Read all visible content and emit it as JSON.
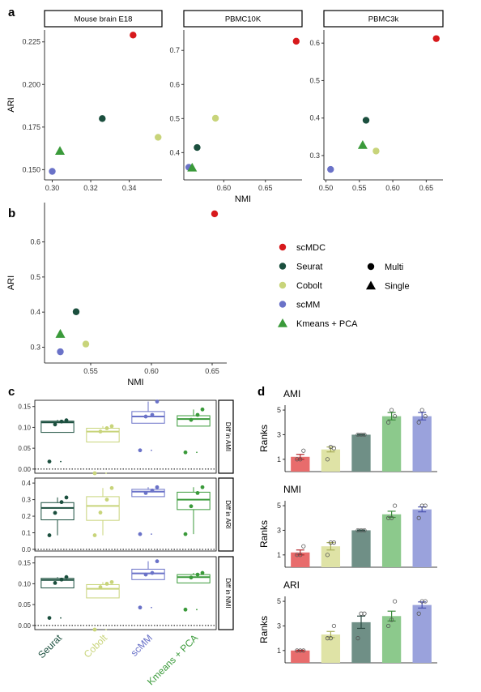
{
  "colors": {
    "scMDC": "#d7191c",
    "Seurat": "#1b4f3e",
    "Cobolt": "#c8d47a",
    "scMM": "#6a72c8",
    "Kmeans + PCA": "#3a9a3a",
    "grid_line": "#000000"
  },
  "panel_labels": {
    "a": "a",
    "b": "b",
    "c": "c",
    "d": "d"
  },
  "legend": {
    "methods": [
      {
        "name": "scMDC",
        "shape": "circle"
      },
      {
        "name": "Seurat",
        "shape": "circle"
      },
      {
        "name": "Cobolt",
        "shape": "circle"
      },
      {
        "name": "scMM",
        "shape": "circle"
      },
      {
        "name": "Kmeans + PCA",
        "shape": "triangle"
      }
    ],
    "shapes": [
      {
        "name": "Multi",
        "shape": "circle"
      },
      {
        "name": "Single",
        "shape": "triangle"
      }
    ]
  },
  "chart_data": [
    {
      "panel": "a",
      "type": "scatter",
      "title": "Mouse brain E18",
      "xlabel": "",
      "ylabel": "ARI",
      "xlim": [
        0.296,
        0.357
      ],
      "ylim": [
        0.144,
        0.232
      ],
      "xticks": [
        "0.30",
        "0.32",
        "0.34"
      ],
      "xtick_values": [
        0.3,
        0.32,
        0.34
      ],
      "yticks": [
        "0.150",
        "0.175",
        "0.200",
        "0.225"
      ],
      "ytick_values": [
        0.15,
        0.175,
        0.2,
        0.225
      ],
      "points": [
        {
          "method": "scMDC",
          "x": 0.342,
          "y": 0.229,
          "shape": "circle"
        },
        {
          "method": "Seurat",
          "x": 0.326,
          "y": 0.18,
          "shape": "circle"
        },
        {
          "method": "Cobolt",
          "x": 0.355,
          "y": 0.169,
          "shape": "circle"
        },
        {
          "method": "Kmeans + PCA",
          "x": 0.304,
          "y": 0.161,
          "shape": "triangle"
        },
        {
          "method": "scMM",
          "x": 0.3,
          "y": 0.149,
          "shape": "circle"
        }
      ]
    },
    {
      "panel": "a",
      "type": "scatter",
      "title": "PBMC10K",
      "xlabel": "NMI",
      "ylabel": "",
      "xlim": [
        0.552,
        0.694
      ],
      "ylim": [
        0.32,
        0.76
      ],
      "xticks": [
        "0.60",
        "0.65"
      ],
      "xtick_values": [
        0.6,
        0.65
      ],
      "yticks": [
        "0.4",
        "0.5",
        "0.6",
        "0.7"
      ],
      "ytick_values": [
        0.4,
        0.5,
        0.6,
        0.7
      ],
      "points": [
        {
          "method": "scMDC",
          "x": 0.687,
          "y": 0.727,
          "shape": "circle"
        },
        {
          "method": "Cobolt",
          "x": 0.59,
          "y": 0.501,
          "shape": "circle"
        },
        {
          "method": "Seurat",
          "x": 0.568,
          "y": 0.415,
          "shape": "circle"
        },
        {
          "method": "scMM",
          "x": 0.558,
          "y": 0.357,
          "shape": "circle"
        },
        {
          "method": "Kmeans + PCA",
          "x": 0.562,
          "y": 0.356,
          "shape": "triangle"
        }
      ]
    },
    {
      "panel": "a",
      "type": "scatter",
      "title": "PBMC3k",
      "xlabel": "",
      "ylabel": "",
      "xlim": [
        0.497,
        0.675
      ],
      "ylim": [
        0.235,
        0.635
      ],
      "xticks": [
        "0.50",
        "0.55",
        "0.60",
        "0.65"
      ],
      "xtick_values": [
        0.5,
        0.55,
        0.6,
        0.65
      ],
      "yticks": [
        "0.3",
        "0.4",
        "0.5",
        "0.6"
      ],
      "ytick_values": [
        0.3,
        0.4,
        0.5,
        0.6
      ],
      "points": [
        {
          "method": "scMDC",
          "x": 0.665,
          "y": 0.612,
          "shape": "circle"
        },
        {
          "method": "Seurat",
          "x": 0.56,
          "y": 0.394,
          "shape": "circle"
        },
        {
          "method": "Kmeans + PCA",
          "x": 0.555,
          "y": 0.328,
          "shape": "triangle"
        },
        {
          "method": "Cobolt",
          "x": 0.575,
          "y": 0.312,
          "shape": "circle"
        },
        {
          "method": "scMM",
          "x": 0.507,
          "y": 0.263,
          "shape": "circle"
        }
      ]
    },
    {
      "panel": "b",
      "type": "scatter",
      "title": "",
      "xlabel": "NMI",
      "ylabel": "ARI",
      "xlim": [
        0.512,
        0.662
      ],
      "ylim": [
        0.255,
        0.712
      ],
      "xticks": [
        "0.55",
        "0.60",
        "0.65"
      ],
      "xtick_values": [
        0.55,
        0.6,
        0.65
      ],
      "yticks": [
        "0.3",
        "0.4",
        "0.5",
        "0.6"
      ],
      "ytick_values": [
        0.3,
        0.4,
        0.5,
        0.6
      ],
      "points": [
        {
          "method": "scMDC",
          "x": 0.652,
          "y": 0.68,
          "shape": "circle"
        },
        {
          "method": "Seurat",
          "x": 0.538,
          "y": 0.401,
          "shape": "circle"
        },
        {
          "method": "Kmeans + PCA",
          "x": 0.525,
          "y": 0.338,
          "shape": "triangle"
        },
        {
          "method": "Cobolt",
          "x": 0.546,
          "y": 0.309,
          "shape": "circle"
        },
        {
          "method": "scMM",
          "x": 0.525,
          "y": 0.287,
          "shape": "circle"
        }
      ]
    },
    {
      "panel": "c",
      "type": "box",
      "categories": [
        "Seurat",
        "Cobolt",
        "scMM",
        "Kmeans + PCA"
      ],
      "facets": [
        {
          "strip": "Diff in AMI",
          "ylim": [
            -0.01,
            0.165
          ],
          "yticks": [
            "0.00",
            "0.05",
            "0.10",
            "0.15"
          ],
          "ytick_values": [
            0.0,
            0.05,
            0.1,
            0.15
          ],
          "boxes": [
            {
              "q1": 0.088,
              "median": 0.112,
              "q3": 0.115,
              "whisker_low": 0.088,
              "whisker_high": 0.118,
              "outliers": [
                0.018
              ],
              "points": [
                0.018,
                0.107,
                0.114,
                0.117
              ]
            },
            {
              "q1": 0.065,
              "median": 0.09,
              "q3": 0.098,
              "whisker_low": 0.065,
              "whisker_high": 0.103,
              "outliers": [
                -0.01
              ],
              "points": [
                -0.01,
                0.09,
                0.098,
                0.103
              ]
            },
            {
              "q1": 0.11,
              "median": 0.126,
              "q3": 0.138,
              "whisker_low": 0.11,
              "whisker_high": 0.162,
              "outliers": [
                0.045
              ],
              "points": [
                0.045,
                0.126,
                0.13,
                0.162
              ]
            },
            {
              "q1": 0.103,
              "median": 0.12,
              "q3": 0.128,
              "whisker_low": 0.103,
              "whisker_high": 0.143,
              "outliers": [
                0.04
              ],
              "points": [
                0.04,
                0.118,
                0.13,
                0.143
              ]
            }
          ]
        },
        {
          "strip": "Diff in ARI",
          "ylim": [
            -0.01,
            0.43
          ],
          "yticks": [
            "0.0",
            "0.1",
            "0.2",
            "0.3",
            "0.4"
          ],
          "ytick_values": [
            0.0,
            0.1,
            0.2,
            0.3,
            0.4
          ],
          "boxes": [
            {
              "q1": 0.178,
              "median": 0.25,
              "q3": 0.282,
              "whisker_low": 0.085,
              "whisker_high": 0.313,
              "outliers": [],
              "points": [
                0.085,
                0.22,
                0.285,
                0.313
              ]
            },
            {
              "q1": 0.175,
              "median": 0.262,
              "q3": 0.318,
              "whisker_low": 0.085,
              "whisker_high": 0.37,
              "outliers": [],
              "points": [
                0.085,
                0.222,
                0.3,
                0.37
              ]
            },
            {
              "q1": 0.318,
              "median": 0.348,
              "q3": 0.362,
              "whisker_low": 0.318,
              "whisker_high": 0.375,
              "outliers": [
                0.092
              ],
              "points": [
                0.092,
                0.34,
                0.355,
                0.375
              ]
            },
            {
              "q1": 0.24,
              "median": 0.3,
              "q3": 0.345,
              "whisker_low": 0.092,
              "whisker_high": 0.375,
              "outliers": [],
              "points": [
                0.092,
                0.26,
                0.34,
                0.375
              ]
            }
          ]
        },
        {
          "strip": "Diff in NMI",
          "ylim": [
            -0.01,
            0.165
          ],
          "yticks": [
            "0.00",
            "0.05",
            "0.10",
            "0.15"
          ],
          "ytick_values": [
            0.0,
            0.05,
            0.1,
            0.15
          ],
          "boxes": [
            {
              "q1": 0.09,
              "median": 0.109,
              "q3": 0.113,
              "whisker_low": 0.09,
              "whisker_high": 0.116,
              "outliers": [
                0.018
              ],
              "points": [
                0.018,
                0.102,
                0.11,
                0.116
              ]
            },
            {
              "q1": 0.066,
              "median": 0.088,
              "q3": 0.098,
              "whisker_low": 0.066,
              "whisker_high": 0.104,
              "outliers": [
                -0.01
              ],
              "points": [
                -0.01,
                0.092,
                0.1,
                0.104
              ]
            },
            {
              "q1": 0.11,
              "median": 0.125,
              "q3": 0.135,
              "whisker_low": 0.11,
              "whisker_high": 0.154,
              "outliers": [
                0.043
              ],
              "points": [
                0.043,
                0.122,
                0.126,
                0.154
              ]
            },
            {
              "q1": 0.102,
              "median": 0.116,
              "q3": 0.122,
              "whisker_low": 0.102,
              "whisker_high": 0.126,
              "outliers": [
                0.038
              ],
              "points": [
                0.038,
                0.115,
                0.122,
                0.126
              ]
            }
          ]
        }
      ]
    },
    {
      "panel": "d",
      "type": "bar",
      "categories": [
        "scMDC",
        "Cobolt",
        "Seurat",
        "Kmeans + PCA",
        "scMM"
      ],
      "ylabel": "Ranks",
      "ylim": [
        0,
        5.4
      ],
      "yticks": [
        "1",
        "3",
        "5"
      ],
      "ytick_values": [
        1,
        3,
        5
      ],
      "bar_colors": [
        "#e86c6c",
        "#dfe3a6",
        "#6f8f86",
        "#8cc98c",
        "#9aa2dc"
      ],
      "subplots": [
        {
          "title": "AMI",
          "series": [
            {
              "values": [
                1.2,
                1.8,
                3.0,
                4.5,
                4.5
              ],
              "errors": [
                0.2,
                0.2,
                0.03,
                0.3,
                0.3
              ],
              "points": [
                [
                  1.0,
                  1.0,
                  1.7
                ],
                [
                  1.0,
                  2.0,
                  1.9
                ],
                [
                  3.0,
                  3.0,
                  3.0
                ],
                [
                  4.0,
                  5.0,
                  4.5
                ],
                [
                  4.0,
                  5.0,
                  4.5
                ]
              ]
            }
          ]
        },
        {
          "title": "NMI",
          "series": [
            {
              "values": [
                1.2,
                1.7,
                3.0,
                4.3,
                4.7
              ],
              "errors": [
                0.2,
                0.3,
                0.03,
                0.25,
                0.2
              ],
              "points": [
                [
                  1.0,
                  1.0,
                  1.7
                ],
                [
                  1.0,
                  2.0,
                  2.0
                ],
                [
                  3.0,
                  3.0,
                  3.0
                ],
                [
                  4.0,
                  4.0,
                  5.0
                ],
                [
                  4.0,
                  5.0,
                  5.0
                ]
              ]
            }
          ]
        },
        {
          "title": "ARI",
          "series": [
            {
              "values": [
                1.0,
                2.3,
                3.3,
                3.8,
                4.7
              ],
              "errors": [
                0.03,
                0.25,
                0.5,
                0.4,
                0.25
              ],
              "points": [
                [
                  1.0,
                  1.0,
                  1.0
                ],
                [
                  2.0,
                  2.0,
                  3.0
                ],
                [
                  2.0,
                  4.0,
                  4.0
                ],
                [
                  3.0,
                  3.5,
                  5.0
                ],
                [
                  4.0,
                  5.0,
                  5.0
                ]
              ]
            }
          ]
        }
      ]
    }
  ]
}
